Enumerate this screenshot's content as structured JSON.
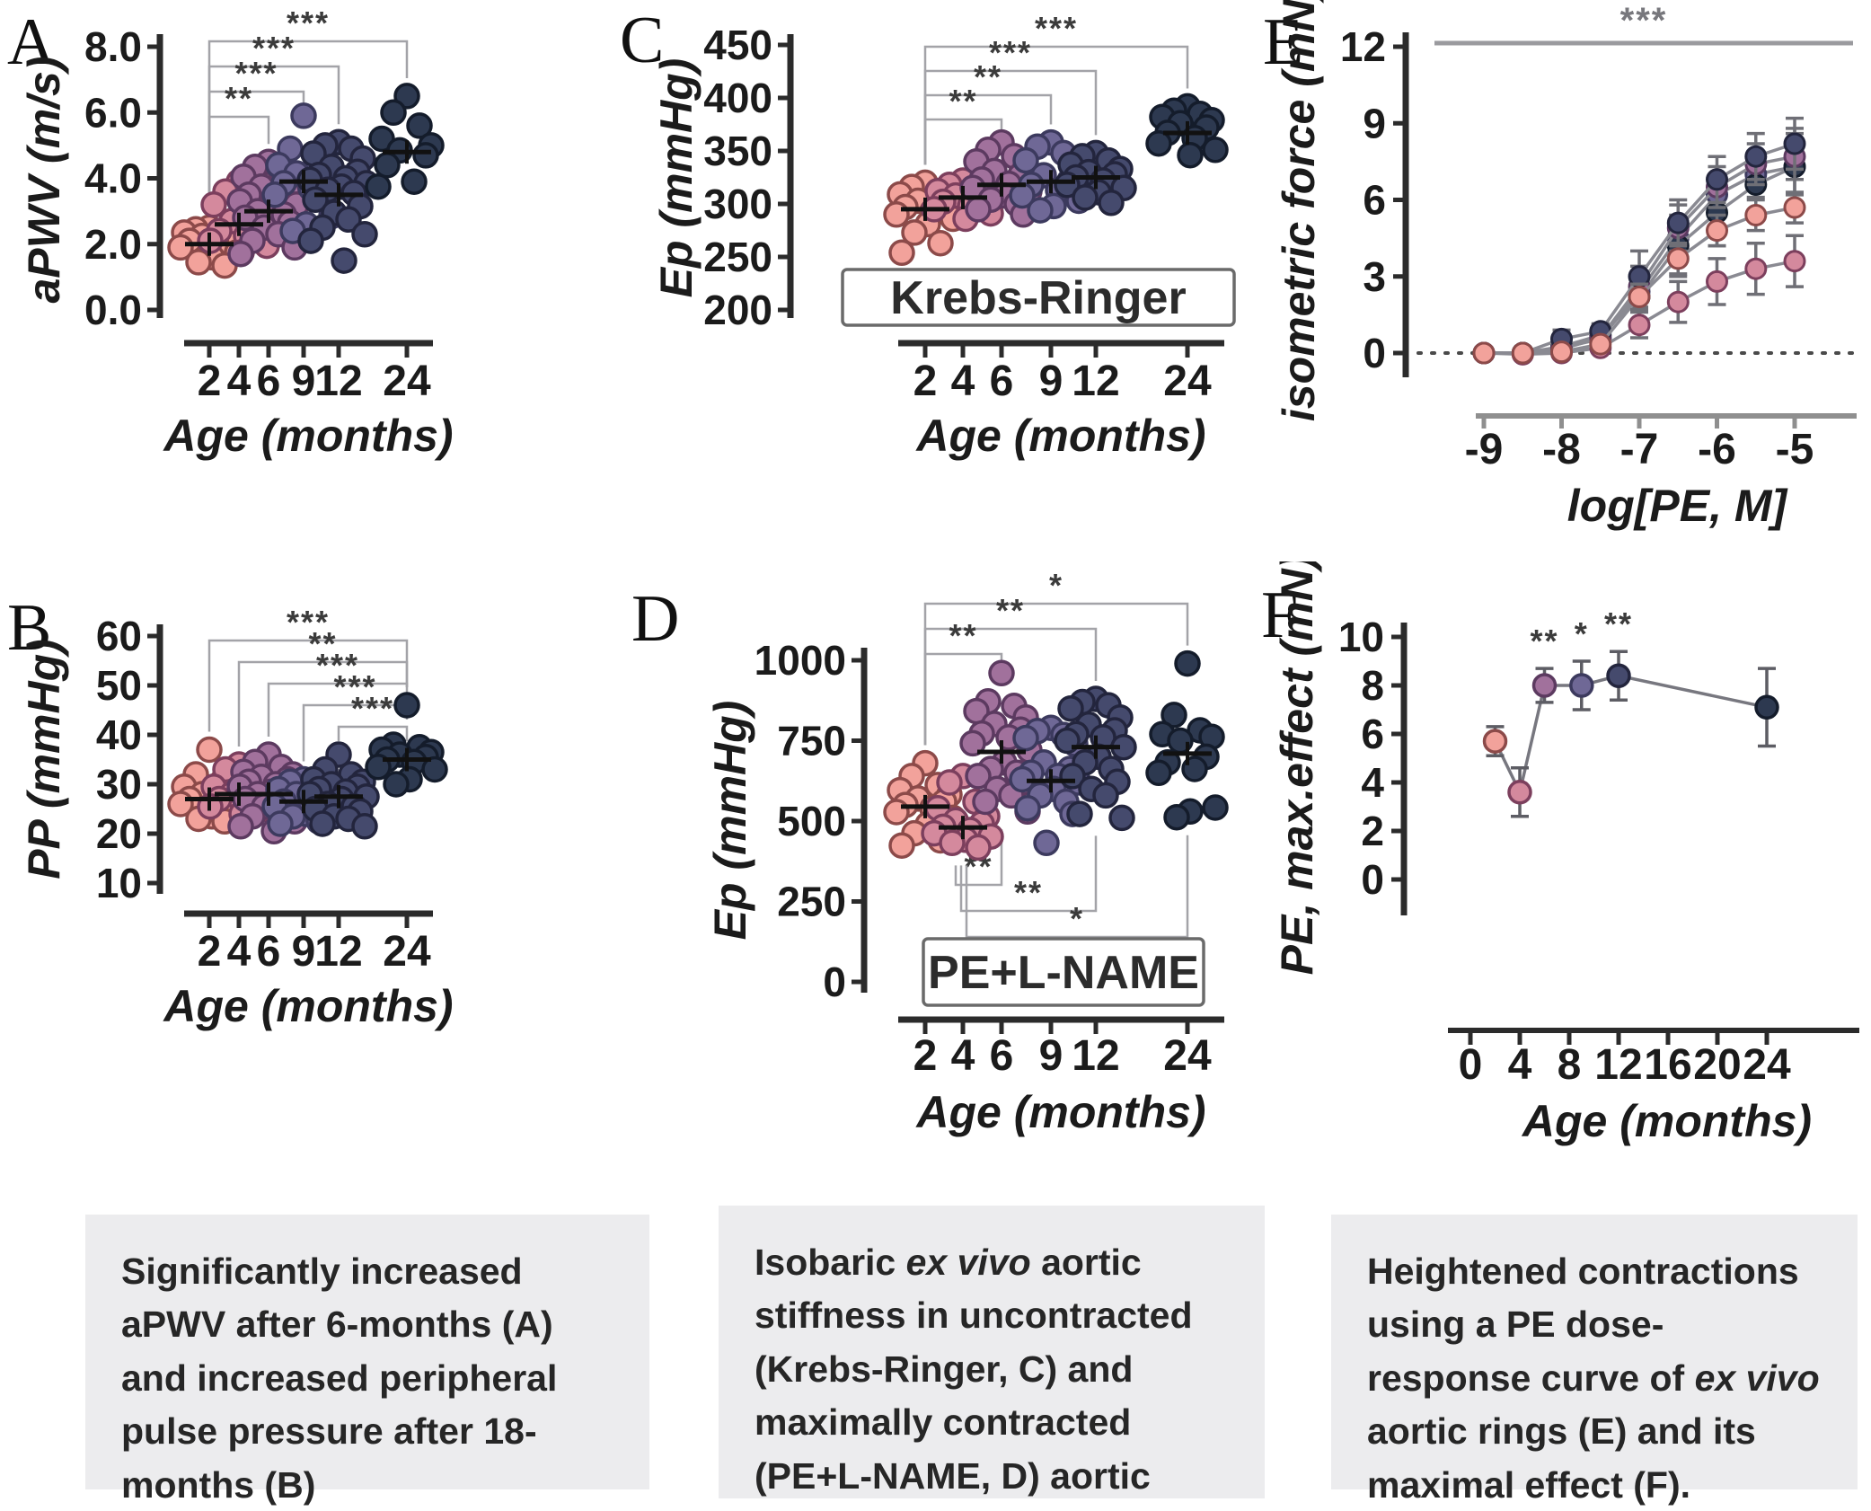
{
  "panels": [
    {
      "id": "A",
      "letter": "A"
    },
    {
      "id": "B",
      "letter": "B"
    },
    {
      "id": "C",
      "letter": "C"
    },
    {
      "id": "D",
      "letter": "D"
    },
    {
      "id": "E",
      "letter": "E"
    },
    {
      "id": "F",
      "letter": "F"
    }
  ],
  "age_groups": [
    {
      "label": "2",
      "color": "#f2a29b",
      "edge": "#8c4a49"
    },
    {
      "label": "4",
      "color": "#d4899d",
      "edge": "#7c3f5d"
    },
    {
      "label": "6",
      "color": "#a1719c",
      "edge": "#5c3a60"
    },
    {
      "label": "9",
      "color": "#6f6896",
      "edge": "#3c3a5e"
    },
    {
      "label": "12",
      "color": "#454a6d",
      "edge": "#23253d"
    },
    {
      "label": "24",
      "color": "#2d3950",
      "edge": "#141c2b"
    }
  ],
  "chart_data": [
    {
      "id": "A",
      "type": "strip",
      "ylabel": "aPWV (m/s)",
      "xlabel": "Age (months)",
      "categories": [
        "2",
        "4",
        "6",
        "9",
        "12",
        "24"
      ],
      "ylim": [
        0,
        8
      ],
      "yticks": [
        {
          "v": 0,
          "label": "0.0"
        },
        {
          "v": 2,
          "label": "2.0"
        },
        {
          "v": 4,
          "label": "4.0"
        },
        {
          "v": 6,
          "label": "6.0"
        },
        {
          "v": 8,
          "label": "8.0"
        }
      ],
      "groups": [
        [
          2.5,
          2.45,
          2.4,
          2.35,
          2.3,
          2.25,
          2.2,
          2.1,
          2.0,
          1.9,
          1.75,
          1.6,
          1.45,
          1.35
        ],
        [
          3.9,
          3.6,
          3.4,
          3.2,
          2.9,
          2.7,
          2.55,
          2.4,
          2.25,
          2.1,
          1.95,
          1.75
        ],
        [
          4.5,
          4.35,
          4.2,
          4.05,
          3.9,
          3.75,
          3.6,
          3.5,
          3.4,
          3.3,
          3.2,
          3.1,
          3.0,
          2.9,
          2.8,
          2.65,
          2.5,
          2.3,
          2.1,
          1.9,
          1.7
        ],
        [
          5.9,
          4.9,
          4.55,
          4.4,
          4.3,
          4.15,
          4.0,
          3.85,
          3.7,
          3.5,
          2.85,
          2.6,
          2.4
        ],
        [
          5.1,
          5.0,
          4.9,
          4.75,
          4.6,
          4.35,
          4.2,
          4.1,
          4.0,
          3.95,
          3.85,
          3.75,
          3.65,
          3.55,
          3.35,
          3.15,
          2.95,
          2.75,
          2.5,
          2.3,
          2.1,
          1.5
        ],
        [
          6.5,
          6.0,
          5.6,
          5.2,
          5.0,
          4.85,
          4.7,
          4.4,
          3.9,
          3.75
        ]
      ],
      "medians": [
        2.0,
        2.6,
        3.0,
        3.9,
        3.5,
        4.8
      ],
      "annotations": [
        {
          "from": 0,
          "to": 5,
          "label": "***"
        },
        {
          "from": 0,
          "to": 4,
          "label": "***"
        },
        {
          "from": 0,
          "to": 3,
          "label": "***"
        },
        {
          "from": 0,
          "to": 2,
          "label": "**"
        }
      ]
    },
    {
      "id": "B",
      "type": "strip",
      "ylabel": "PP (mmHg)",
      "xlabel": "Age (months)",
      "categories": [
        "2",
        "4",
        "6",
        "9",
        "12",
        "24"
      ],
      "ylim": [
        10,
        60
      ],
      "yticks": [
        {
          "v": 10,
          "label": "10"
        },
        {
          "v": 20,
          "label": "20"
        },
        {
          "v": 30,
          "label": "30"
        },
        {
          "v": 40,
          "label": "40"
        },
        {
          "v": 50,
          "label": "50"
        },
        {
          "v": 60,
          "label": "60"
        }
      ],
      "groups": [
        [
          37,
          32,
          30.5,
          29.5,
          28.5,
          28,
          27.5,
          27,
          26.5,
          26,
          25,
          23.5,
          23,
          22.5
        ],
        [
          34,
          33,
          32,
          29.5,
          28.5,
          28,
          27.5,
          27,
          26.5,
          25.5,
          25,
          24
        ],
        [
          36,
          34.5,
          33.5,
          32.5,
          32,
          31.5,
          31,
          30.5,
          30,
          29.5,
          29,
          28.5,
          28,
          27.5,
          27,
          26.5,
          25.5,
          24.5,
          23.5,
          22.5,
          21.5,
          20.5
        ],
        [
          31,
          30.5,
          30,
          29,
          28.5,
          28,
          27.5,
          26.5,
          26,
          25.5,
          24.5,
          24,
          23.5,
          22.5,
          22
        ],
        [
          36,
          33,
          32,
          31,
          30.5,
          30,
          29.5,
          29,
          28.5,
          28,
          27.5,
          27,
          26,
          25.5,
          25,
          24.5,
          23.5,
          23,
          22,
          21.5
        ],
        [
          46,
          38,
          37.5,
          37,
          36.5,
          36,
          35.5,
          35,
          34.5,
          33.5,
          33,
          31,
          30
        ]
      ],
      "medians": [
        27,
        28,
        28,
        26.5,
        27.5,
        35
      ],
      "annotations": [
        {
          "from": 0,
          "to": 5,
          "label": "***"
        },
        {
          "from": 1,
          "to": 5,
          "label": "**"
        },
        {
          "from": 2,
          "to": 5,
          "label": "***"
        },
        {
          "from": 3,
          "to": 5,
          "label": "***"
        },
        {
          "from": 4,
          "to": 5,
          "label": "***"
        }
      ]
    },
    {
      "id": "C",
      "type": "strip",
      "ylabel": "Ep (mmHg)",
      "xlabel": "Age (months)",
      "box_label": "Krebs-Ringer",
      "categories": [
        "2",
        "4",
        "6",
        "9",
        "12",
        "24"
      ],
      "ylim": [
        200,
        450
      ],
      "yticks": [
        {
          "v": 200,
          "label": "200"
        },
        {
          "v": 250,
          "label": "250"
        },
        {
          "v": 300,
          "label": "300"
        },
        {
          "v": 350,
          "label": "350"
        },
        {
          "v": 400,
          "label": "400"
        },
        {
          "v": 450,
          "label": "450"
        }
      ],
      "groups": [
        [
          320,
          316,
          312,
          309,
          306,
          303,
          300,
          297,
          293,
          290,
          286,
          281,
          273,
          263,
          254
        ],
        [
          322,
          318,
          315,
          312,
          310,
          308,
          305,
          302,
          298,
          295,
          291,
          286
        ],
        [
          358,
          351,
          345,
          340,
          336,
          331,
          327,
          323,
          319,
          315,
          312,
          308,
          304,
          300,
          295,
          290
        ],
        [
          358,
          354,
          348,
          341,
          333,
          327,
          322,
          318,
          313,
          308,
          303,
          298,
          294
        ],
        [
          348,
          345,
          341,
          337,
          333,
          330,
          328,
          325,
          322,
          318,
          315,
          311,
          306,
          301
        ],
        [
          392,
          388,
          385,
          382,
          379,
          376,
          372,
          367,
          362,
          357,
          351,
          346
        ]
      ],
      "medians": [
        295,
        306,
        318,
        321,
        325,
        367
      ],
      "annotations": [
        {
          "from": 0,
          "to": 5,
          "label": "***"
        },
        {
          "from": 0,
          "to": 4,
          "label": "***"
        },
        {
          "from": 0,
          "to": 3,
          "label": "**"
        },
        {
          "from": 0,
          "to": 2,
          "label": "**"
        }
      ]
    },
    {
      "id": "D",
      "type": "strip",
      "ylabel": "Ep (mmHg)",
      "xlabel": "Age (months)",
      "box_label": "PE+L-NAME",
      "categories": [
        "2",
        "4",
        "6",
        "9",
        "12",
        "24"
      ],
      "ylim": [
        0,
        1000
      ],
      "yticks": [
        {
          "v": 0,
          "label": "0"
        },
        {
          "v": 250,
          "label": "250"
        },
        {
          "v": 500,
          "label": "500"
        },
        {
          "v": 750,
          "label": "750"
        },
        {
          "v": 1000,
          "label": "1000"
        }
      ],
      "groups": [
        [
          680,
          640,
          612,
          596,
          582,
          570,
          560,
          550,
          540,
          528,
          510,
          490,
          462,
          440,
          424
        ],
        [
          640,
          620,
          560,
          540,
          515,
          502,
          492,
          482,
          472,
          462,
          452,
          442,
          432,
          418
        ],
        [
          960,
          872,
          858,
          842,
          822,
          802,
          784,
          772,
          760,
          742,
          720,
          682,
          662,
          650,
          640,
          620,
          600,
          580,
          560,
          530
        ],
        [
          790,
          780,
          768,
          758,
          740,
          682,
          662,
          650,
          640,
          630,
          620,
          600,
          580,
          560,
          540,
          522,
          432
        ],
        [
          880,
          870,
          860,
          850,
          822,
          800,
          782,
          770,
          760,
          750,
          730,
          700,
          682,
          662,
          640,
          622,
          600,
          580,
          522,
          510
        ],
        [
          990,
          830,
          782,
          770,
          762,
          750,
          700,
          682,
          662,
          650,
          542,
          530,
          512
        ]
      ],
      "medians": [
        545,
        480,
        715,
        625,
        730,
        710
      ],
      "annotations": [
        {
          "from": 0,
          "to": 5,
          "label": "*"
        },
        {
          "from": 0,
          "to": 4,
          "label": "**"
        },
        {
          "from": 0,
          "to": 2,
          "label": "**"
        },
        {
          "from": 1,
          "to": 2,
          "label": "**",
          "side": "below"
        },
        {
          "from": 1,
          "to": 4,
          "label": "**",
          "side": "below"
        },
        {
          "from": 1,
          "to": 5,
          "label": "*",
          "side": "below"
        }
      ]
    },
    {
      "id": "E",
      "type": "dose",
      "ylabel": "isometric force (mN)",
      "xlabel": "log[PE, M]",
      "top_sig": "***",
      "ylim": [
        0,
        12
      ],
      "yticks": [
        {
          "v": 0,
          "label": "0"
        },
        {
          "v": 3,
          "label": "3"
        },
        {
          "v": 6,
          "label": "6"
        },
        {
          "v": 9,
          "label": "9"
        },
        {
          "v": 12,
          "label": "12"
        }
      ],
      "xticks": [
        {
          "v": -9,
          "label": "-9"
        },
        {
          "v": -8,
          "label": "-8"
        },
        {
          "v": -7,
          "label": "-7"
        },
        {
          "v": -6,
          "label": "-6"
        },
        {
          "v": -5,
          "label": "-5"
        }
      ],
      "x": [
        -9,
        -8.5,
        -8,
        -7.5,
        -7,
        -6.5,
        -6,
        -5.5,
        -5
      ],
      "series": [
        {
          "name": "2",
          "values": [
            0,
            0,
            0.05,
            0.35,
            2.2,
            3.7,
            4.8,
            5.4,
            5.7
          ],
          "errors": [
            0.05,
            0.05,
            0.1,
            0.2,
            0.5,
            0.6,
            0.6,
            0.6,
            0.6
          ]
        },
        {
          "name": "4",
          "values": [
            0,
            -0.05,
            0,
            0.2,
            1.1,
            2.0,
            2.8,
            3.3,
            3.6
          ],
          "errors": [
            0.05,
            0.1,
            0.1,
            0.2,
            0.5,
            0.8,
            0.9,
            1.0,
            1.0
          ]
        },
        {
          "name": "6",
          "values": [
            0,
            0,
            0.15,
            0.6,
            2.6,
            4.9,
            6.5,
            7.4,
            7.7
          ],
          "errors": [
            0.05,
            0.05,
            0.15,
            0.3,
            0.8,
            0.9,
            0.8,
            0.8,
            0.9
          ]
        },
        {
          "name": "9",
          "values": [
            0,
            0,
            0.2,
            0.55,
            2.4,
            4.5,
            6.2,
            7.0,
            7.3
          ],
          "errors": [
            0.05,
            0.05,
            0.15,
            0.3,
            0.7,
            0.8,
            0.8,
            0.9,
            1.1
          ]
        },
        {
          "name": "12",
          "values": [
            0,
            0,
            0.55,
            0.85,
            3.0,
            5.1,
            6.8,
            7.7,
            8.2
          ],
          "errors": [
            0.05,
            0.1,
            0.35,
            0.3,
            1.0,
            0.9,
            0.9,
            0.9,
            1.0
          ]
        },
        {
          "name": "24",
          "values": [
            0,
            0,
            0.25,
            0.7,
            2.2,
            4.2,
            5.5,
            6.6,
            7.3
          ],
          "errors": [
            0.05,
            0.05,
            0.2,
            0.4,
            0.9,
            1.2,
            1.3,
            1.3,
            1.5
          ]
        }
      ]
    },
    {
      "id": "F",
      "type": "line",
      "ylabel": "PE, max.effect (mN)",
      "xlabel": "Age (months)",
      "ylim": [
        0,
        10
      ],
      "yticks": [
        {
          "v": 0,
          "label": "0"
        },
        {
          "v": 2,
          "label": "2"
        },
        {
          "v": 4,
          "label": "4"
        },
        {
          "v": 6,
          "label": "6"
        },
        {
          "v": 8,
          "label": "8"
        },
        {
          "v": 10,
          "label": "10"
        }
      ],
      "xticks": [
        {
          "v": 0,
          "label": "0"
        },
        {
          "v": 4,
          "label": "4"
        },
        {
          "v": 8,
          "label": "8"
        },
        {
          "v": 12,
          "label": "12"
        },
        {
          "v": 16,
          "label": "16"
        },
        {
          "v": 20,
          "label": "20"
        },
        {
          "v": 24,
          "label": "24"
        }
      ],
      "x": [
        2,
        4,
        6,
        9,
        12,
        24
      ],
      "values": [
        5.7,
        3.6,
        8.0,
        8.0,
        8.4,
        7.1
      ],
      "errors": [
        0.6,
        1.0,
        0.7,
        1.0,
        1.0,
        1.6
      ],
      "point_sig": [
        {
          "i": 2,
          "label": "**"
        },
        {
          "i": 3,
          "label": "*"
        },
        {
          "i": 4,
          "label": "**"
        }
      ]
    }
  ],
  "captions": [
    {
      "segments": [
        {
          "t": "Significantly increased aPWV after 6-months ("
        },
        {
          "t": "A",
          "b": true
        },
        {
          "t": ") and increased peripheral pulse pressure after 18-months ("
        },
        {
          "t": "B",
          "b": true
        },
        {
          "t": ")"
        }
      ]
    },
    {
      "segments": [
        {
          "t": "Isobaric "
        },
        {
          "t": "ex vivo",
          "i": true
        },
        {
          "t": " aortic stiffness in uncontracted (Krebs-Ringer, "
        },
        {
          "t": "C",
          "b": true
        },
        {
          "t": ") and maximally contracted (PE+L-NAME, "
        },
        {
          "t": "D",
          "b": true
        },
        {
          "t": ") aortic rings"
        }
      ]
    },
    {
      "segments": [
        {
          "t": "Heightened contractions using a PE dose-response curve of "
        },
        {
          "t": "ex vivo",
          "i": true
        },
        {
          "t": " aortic rings ("
        },
        {
          "t": "E",
          "b": true
        },
        {
          "t": ") and its maximal effect ("
        },
        {
          "t": "F",
          "b": true
        },
        {
          "t": "). "
        }
      ]
    }
  ]
}
